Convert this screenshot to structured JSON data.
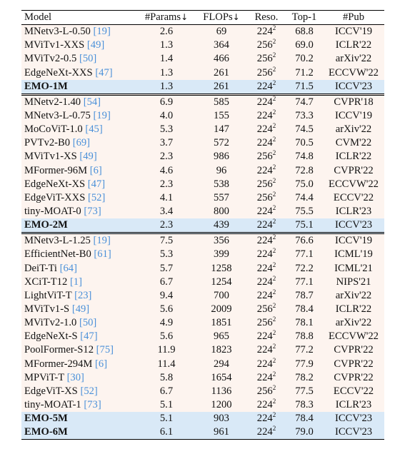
{
  "headers": {
    "model": "Model",
    "params": "#Params",
    "params_arrow": "↓",
    "flops": "FLOPs",
    "flops_arrow": "↓",
    "reso": "Reso.",
    "top1": "Top-1",
    "pub": "#Pub"
  },
  "sections": [
    {
      "rows": [
        {
          "name": "MNetv3-L-0.50",
          "ref": "[19]",
          "params": "2.6",
          "flops": "69",
          "reso_base": "224",
          "reso_exp": "2",
          "top1": "68.8",
          "pub": "ICCV'19",
          "emo": false
        },
        {
          "name": "MViTv1-XXS",
          "ref": "[49]",
          "params": "1.3",
          "flops": "364",
          "reso_base": "256",
          "reso_exp": "2",
          "top1": "69.0",
          "pub": "ICLR'22",
          "emo": false
        },
        {
          "name": "MViTv2-0.5",
          "ref": "[50]",
          "params": "1.4",
          "flops": "466",
          "reso_base": "256",
          "reso_exp": "2",
          "top1": "70.2",
          "pub": "arXiv'22",
          "emo": false
        },
        {
          "name": "EdgeNeXt-XXS",
          "ref": "[47]",
          "params": "1.3",
          "flops": "261",
          "reso_base": "256",
          "reso_exp": "2",
          "top1": "71.2",
          "pub": "ECCVW'22",
          "emo": false
        },
        {
          "name": "EMO-1M",
          "ref": "",
          "params": "1.3",
          "flops": "261",
          "reso_base": "224",
          "reso_exp": "2",
          "top1": "71.5",
          "pub": "ICCV'23",
          "emo": true
        }
      ]
    },
    {
      "rows": [
        {
          "name": "MNetv2-1.40",
          "ref": "[54]",
          "params": "6.9",
          "flops": "585",
          "reso_base": "224",
          "reso_exp": "2",
          "top1": "74.7",
          "pub": "CVPR'18",
          "emo": false
        },
        {
          "name": "MNetv3-L-0.75",
          "ref": "[19]",
          "params": "4.0",
          "flops": "155",
          "reso_base": "224",
          "reso_exp": "2",
          "top1": "73.3",
          "pub": "ICCV'19",
          "emo": false
        },
        {
          "name": "MoCoViT-1.0",
          "ref": "[45]",
          "params": "5.3",
          "flops": "147",
          "reso_base": "224",
          "reso_exp": "2",
          "top1": "74.5",
          "pub": "arXiv'22",
          "emo": false
        },
        {
          "name": "PVTv2-B0",
          "ref": "[69]",
          "params": "3.7",
          "flops": "572",
          "reso_base": "224",
          "reso_exp": "2",
          "top1": "70.5",
          "pub": "CVM'22",
          "emo": false
        },
        {
          "name": "MViTv1-XS",
          "ref": "[49]",
          "params": "2.3",
          "flops": "986",
          "reso_base": "256",
          "reso_exp": "2",
          "top1": "74.8",
          "pub": "ICLR'22",
          "emo": false
        },
        {
          "name": "MFormer-96M",
          "ref": "[6]",
          "params": "4.6",
          "flops": "96",
          "reso_base": "224",
          "reso_exp": "2",
          "top1": "72.8",
          "pub": "CVPR'22",
          "emo": false
        },
        {
          "name": "EdgeNeXt-XS",
          "ref": "[47]",
          "params": "2.3",
          "flops": "538",
          "reso_base": "256",
          "reso_exp": "2",
          "top1": "75.0",
          "pub": "ECCVW'22",
          "emo": false
        },
        {
          "name": "EdgeViT-XXS",
          "ref": "[52]",
          "params": "4.1",
          "flops": "557",
          "reso_base": "256",
          "reso_exp": "2",
          "top1": "74.4",
          "pub": "ECCV'22",
          "emo": false
        },
        {
          "name": "tiny-MOAT-0",
          "ref": "[73]",
          "params": "3.4",
          "flops": "800",
          "reso_base": "224",
          "reso_exp": "2",
          "top1": "75.5",
          "pub": "ICLR'23",
          "emo": false
        },
        {
          "name": "EMO-2M",
          "ref": "",
          "params": "2.3",
          "flops": "439",
          "reso_base": "224",
          "reso_exp": "2",
          "top1": "75.1",
          "pub": "ICCV'23",
          "emo": true
        }
      ]
    },
    {
      "rows": [
        {
          "name": "MNetv3-L-1.25",
          "ref": "[19]",
          "params": "7.5",
          "flops": "356",
          "reso_base": "224",
          "reso_exp": "2",
          "top1": "76.6",
          "pub": "ICCV'19",
          "emo": false
        },
        {
          "name": "EfficientNet-B0",
          "ref": "[61]",
          "params": "5.3",
          "flops": "399",
          "reso_base": "224",
          "reso_exp": "2",
          "top1": "77.1",
          "pub": "ICML'19",
          "emo": false
        },
        {
          "name": "DeiT-Ti",
          "ref": "[64]",
          "params": "5.7",
          "flops": "1258",
          "reso_base": "224",
          "reso_exp": "2",
          "top1": "72.2",
          "pub": "ICML'21",
          "emo": false
        },
        {
          "name": "XCiT-T12",
          "ref": "[1]",
          "params": "6.7",
          "flops": "1254",
          "reso_base": "224",
          "reso_exp": "2",
          "top1": "77.1",
          "pub": "NIPS'21",
          "emo": false
        },
        {
          "name": "LightViT-T",
          "ref": "[23]",
          "params": "9.4",
          "flops": "700",
          "reso_base": "224",
          "reso_exp": "2",
          "top1": "78.7",
          "pub": "arXiv'22",
          "emo": false
        },
        {
          "name": "MViTv1-S",
          "ref": "[49]",
          "params": "5.6",
          "flops": "2009",
          "reso_base": "256",
          "reso_exp": "2",
          "top1": "78.4",
          "pub": "ICLR'22",
          "emo": false
        },
        {
          "name": "MViTv2-1.0",
          "ref": "[50]",
          "params": "4.9",
          "flops": "1851",
          "reso_base": "256",
          "reso_exp": "2",
          "top1": "78.1",
          "pub": "arXiv'22",
          "emo": false
        },
        {
          "name": "EdgeNeXt-S",
          "ref": "[47]",
          "params": "5.6",
          "flops": "965",
          "reso_base": "224",
          "reso_exp": "2",
          "top1": "78.8",
          "pub": "ECCVW'22",
          "emo": false
        },
        {
          "name": "PoolFormer-S12",
          "ref": "[75]",
          "params": "11.9",
          "flops": "1823",
          "reso_base": "224",
          "reso_exp": "2",
          "top1": "77.2",
          "pub": "CVPR'22",
          "emo": false
        },
        {
          "name": "MFormer-294M",
          "ref": "[6]",
          "params": "11.4",
          "flops": "294",
          "reso_base": "224",
          "reso_exp": "2",
          "top1": "77.9",
          "pub": "CVPR'22",
          "emo": false
        },
        {
          "name": "MPViT-T",
          "ref": "[30]",
          "params": "5.8",
          "flops": "1654",
          "reso_base": "224",
          "reso_exp": "2",
          "top1": "78.2",
          "pub": "CVPR'22",
          "emo": false
        },
        {
          "name": "EdgeViT-XS",
          "ref": "[52]",
          "params": "6.7",
          "flops": "1136",
          "reso_base": "256",
          "reso_exp": "2",
          "top1": "77.5",
          "pub": "ECCV'22",
          "emo": false
        },
        {
          "name": "tiny-MOAT-1",
          "ref": "[73]",
          "params": "5.1",
          "flops": "1200",
          "reso_base": "224",
          "reso_exp": "2",
          "top1": "78.3",
          "pub": "ICLR'23",
          "emo": false
        },
        {
          "name": "EMO-5M",
          "ref": "",
          "params": "5.1",
          "flops": "903",
          "reso_base": "224",
          "reso_exp": "2",
          "top1": "78.4",
          "pub": "ICCV'23",
          "emo": true
        },
        {
          "name": "EMO-6M",
          "ref": "",
          "params": "6.1",
          "flops": "961",
          "reso_base": "224",
          "reso_exp": "2",
          "top1": "79.0",
          "pub": "ICCV'23",
          "emo": true
        }
      ]
    }
  ]
}
